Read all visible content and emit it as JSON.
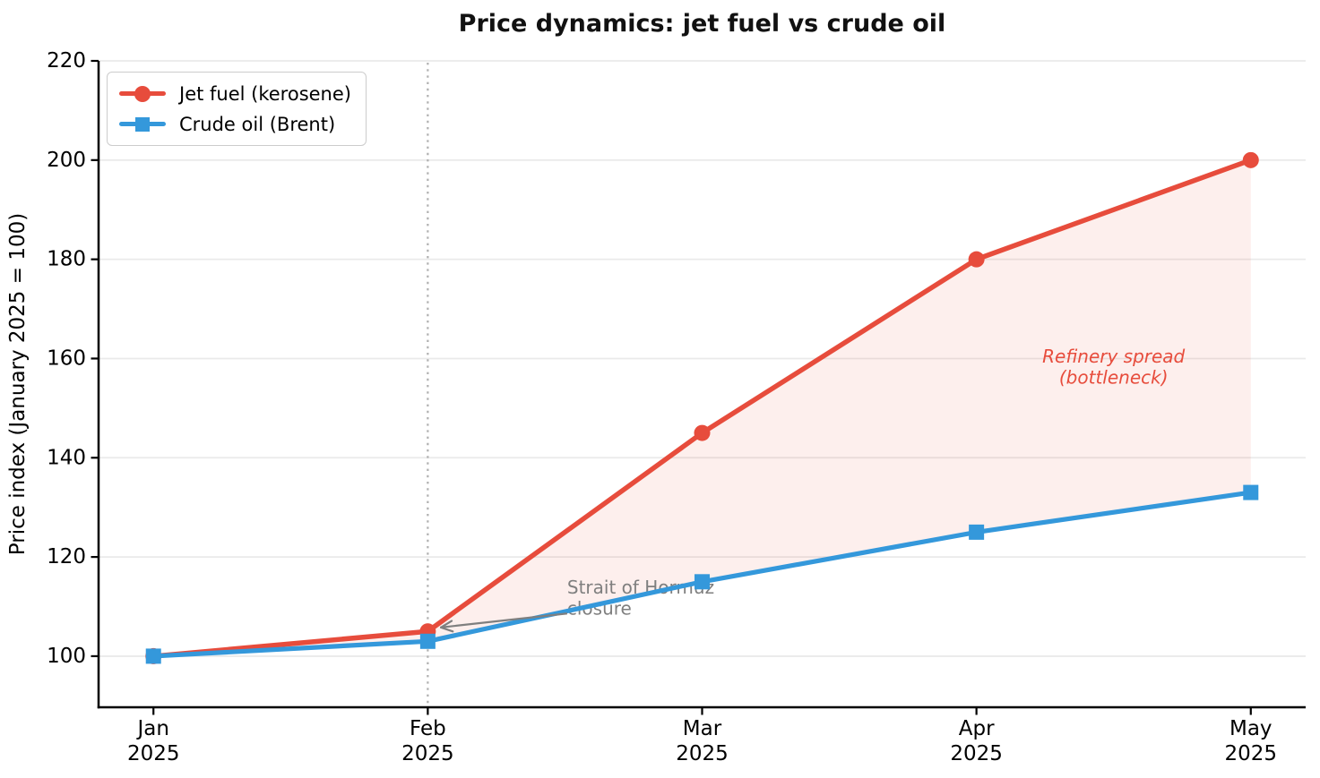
{
  "chart_data": {
    "type": "line",
    "title": "Price dynamics: jet fuel vs crude oil",
    "xlabel": "",
    "ylabel": "Price index (January 2025 = 100)",
    "categories": [
      "Jan 2025",
      "Feb 2025",
      "Mar 2025",
      "Apr 2025",
      "May 2025"
    ],
    "x_tick_labels": [
      [
        "Jan",
        "2025"
      ],
      [
        "Feb",
        "2025"
      ],
      [
        "Mar",
        "2025"
      ],
      [
        "Apr",
        "2025"
      ],
      [
        "May",
        "2025"
      ]
    ],
    "yticks": [
      100,
      120,
      140,
      160,
      180,
      200,
      220
    ],
    "ylim": [
      89.7,
      220
    ],
    "xlim": [
      -0.2,
      4.2
    ],
    "grid": {
      "axis": "y",
      "color": "#eaeaea",
      "width": 1.8
    },
    "series": [
      {
        "name": "Jet fuel (kerosene)",
        "color": "#e74c3c",
        "marker": "circle",
        "line_width": 5.5,
        "values": [
          100,
          105,
          145,
          180,
          200
        ]
      },
      {
        "name": "Crude oil (Brent)",
        "color": "#3498db",
        "marker": "square",
        "line_width": 5.2,
        "values": [
          100,
          103,
          115,
          125,
          133
        ]
      }
    ],
    "fill_between": {
      "upper": "Jet fuel (kerosene)",
      "lower": "Crude oil (Brent)",
      "color": "#e74c3c",
      "opacity": 0.09
    },
    "event_line": {
      "x": 1,
      "color": "#b0b0b0",
      "style": "dotted"
    },
    "legend": {
      "position": "upper-left",
      "entries": [
        "Jet fuel (kerosene)",
        "Crude oil (Brent)"
      ]
    },
    "annotations": [
      {
        "id": "hormuz",
        "lines": [
          "Strait of Hormuz",
          "closure"
        ],
        "color": "#7f7f7f",
        "italic": false,
        "anchor": "start",
        "x": 1.508,
        "y": 112.6,
        "arrow": {
          "from_x": 1.508,
          "from_y": 108.6,
          "to_x": 1.048,
          "to_y": 105.8,
          "color": "#7f7f7f"
        }
      },
      {
        "id": "refinery-spread",
        "lines": [
          "Refinery spread",
          "(bottleneck)"
        ],
        "color": "#e74c3c",
        "italic": true,
        "anchor": "middle",
        "x": 3.5,
        "y": 159.2
      }
    ]
  }
}
